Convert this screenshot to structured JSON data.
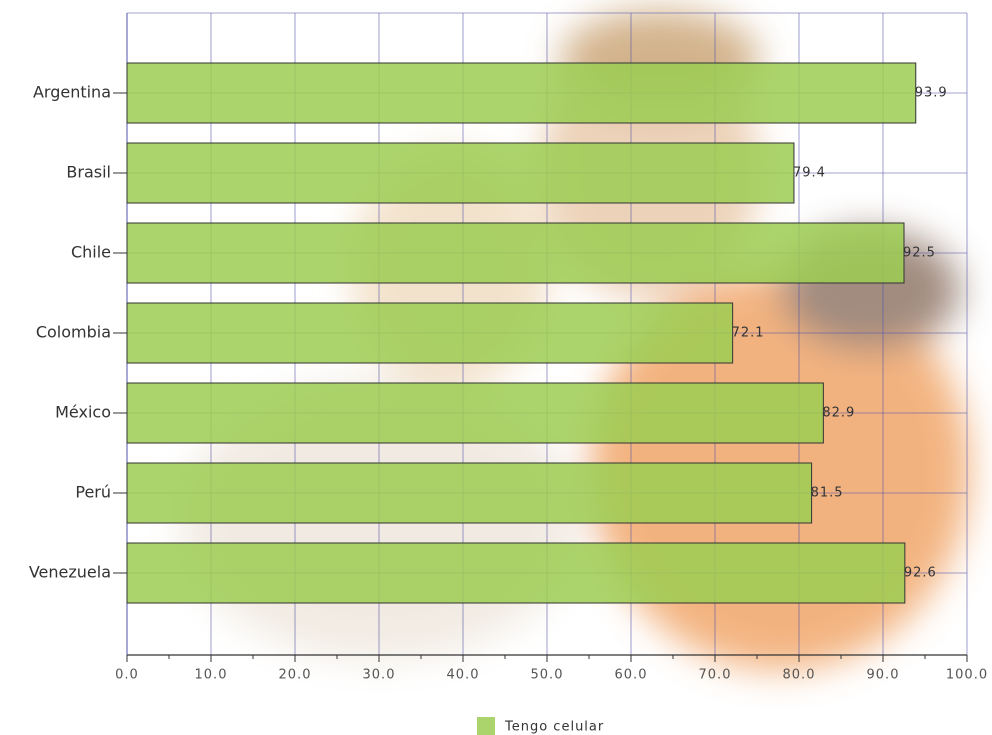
{
  "chart_data": {
    "type": "hbar",
    "categories": [
      "Argentina",
      "Brasil",
      "Chile",
      "Colombia",
      "México",
      "Perú",
      "Venezuela"
    ],
    "series": [
      {
        "name": "Tengo celular",
        "color": "#9ccc52",
        "values": [
          93.9,
          79.4,
          92.5,
          72.1,
          82.9,
          81.5,
          92.6
        ]
      }
    ],
    "xlim": [
      0,
      100
    ],
    "xticks": [
      {
        "value": 0,
        "label": "0.0"
      },
      {
        "value": 10,
        "label": "10.0"
      },
      {
        "value": 20,
        "label": "20.0"
      },
      {
        "value": 30,
        "label": "30.0"
      },
      {
        "value": 40,
        "label": "40.0"
      },
      {
        "value": 50,
        "label": "50.0"
      },
      {
        "value": 60,
        "label": "60.0"
      },
      {
        "value": 70,
        "label": "70.0"
      },
      {
        "value": 80,
        "label": "80.0"
      },
      {
        "value": 90,
        "label": "90.0"
      },
      {
        "value": 100,
        "label": "100.0"
      }
    ],
    "grid": true,
    "legend": "bottom"
  }
}
